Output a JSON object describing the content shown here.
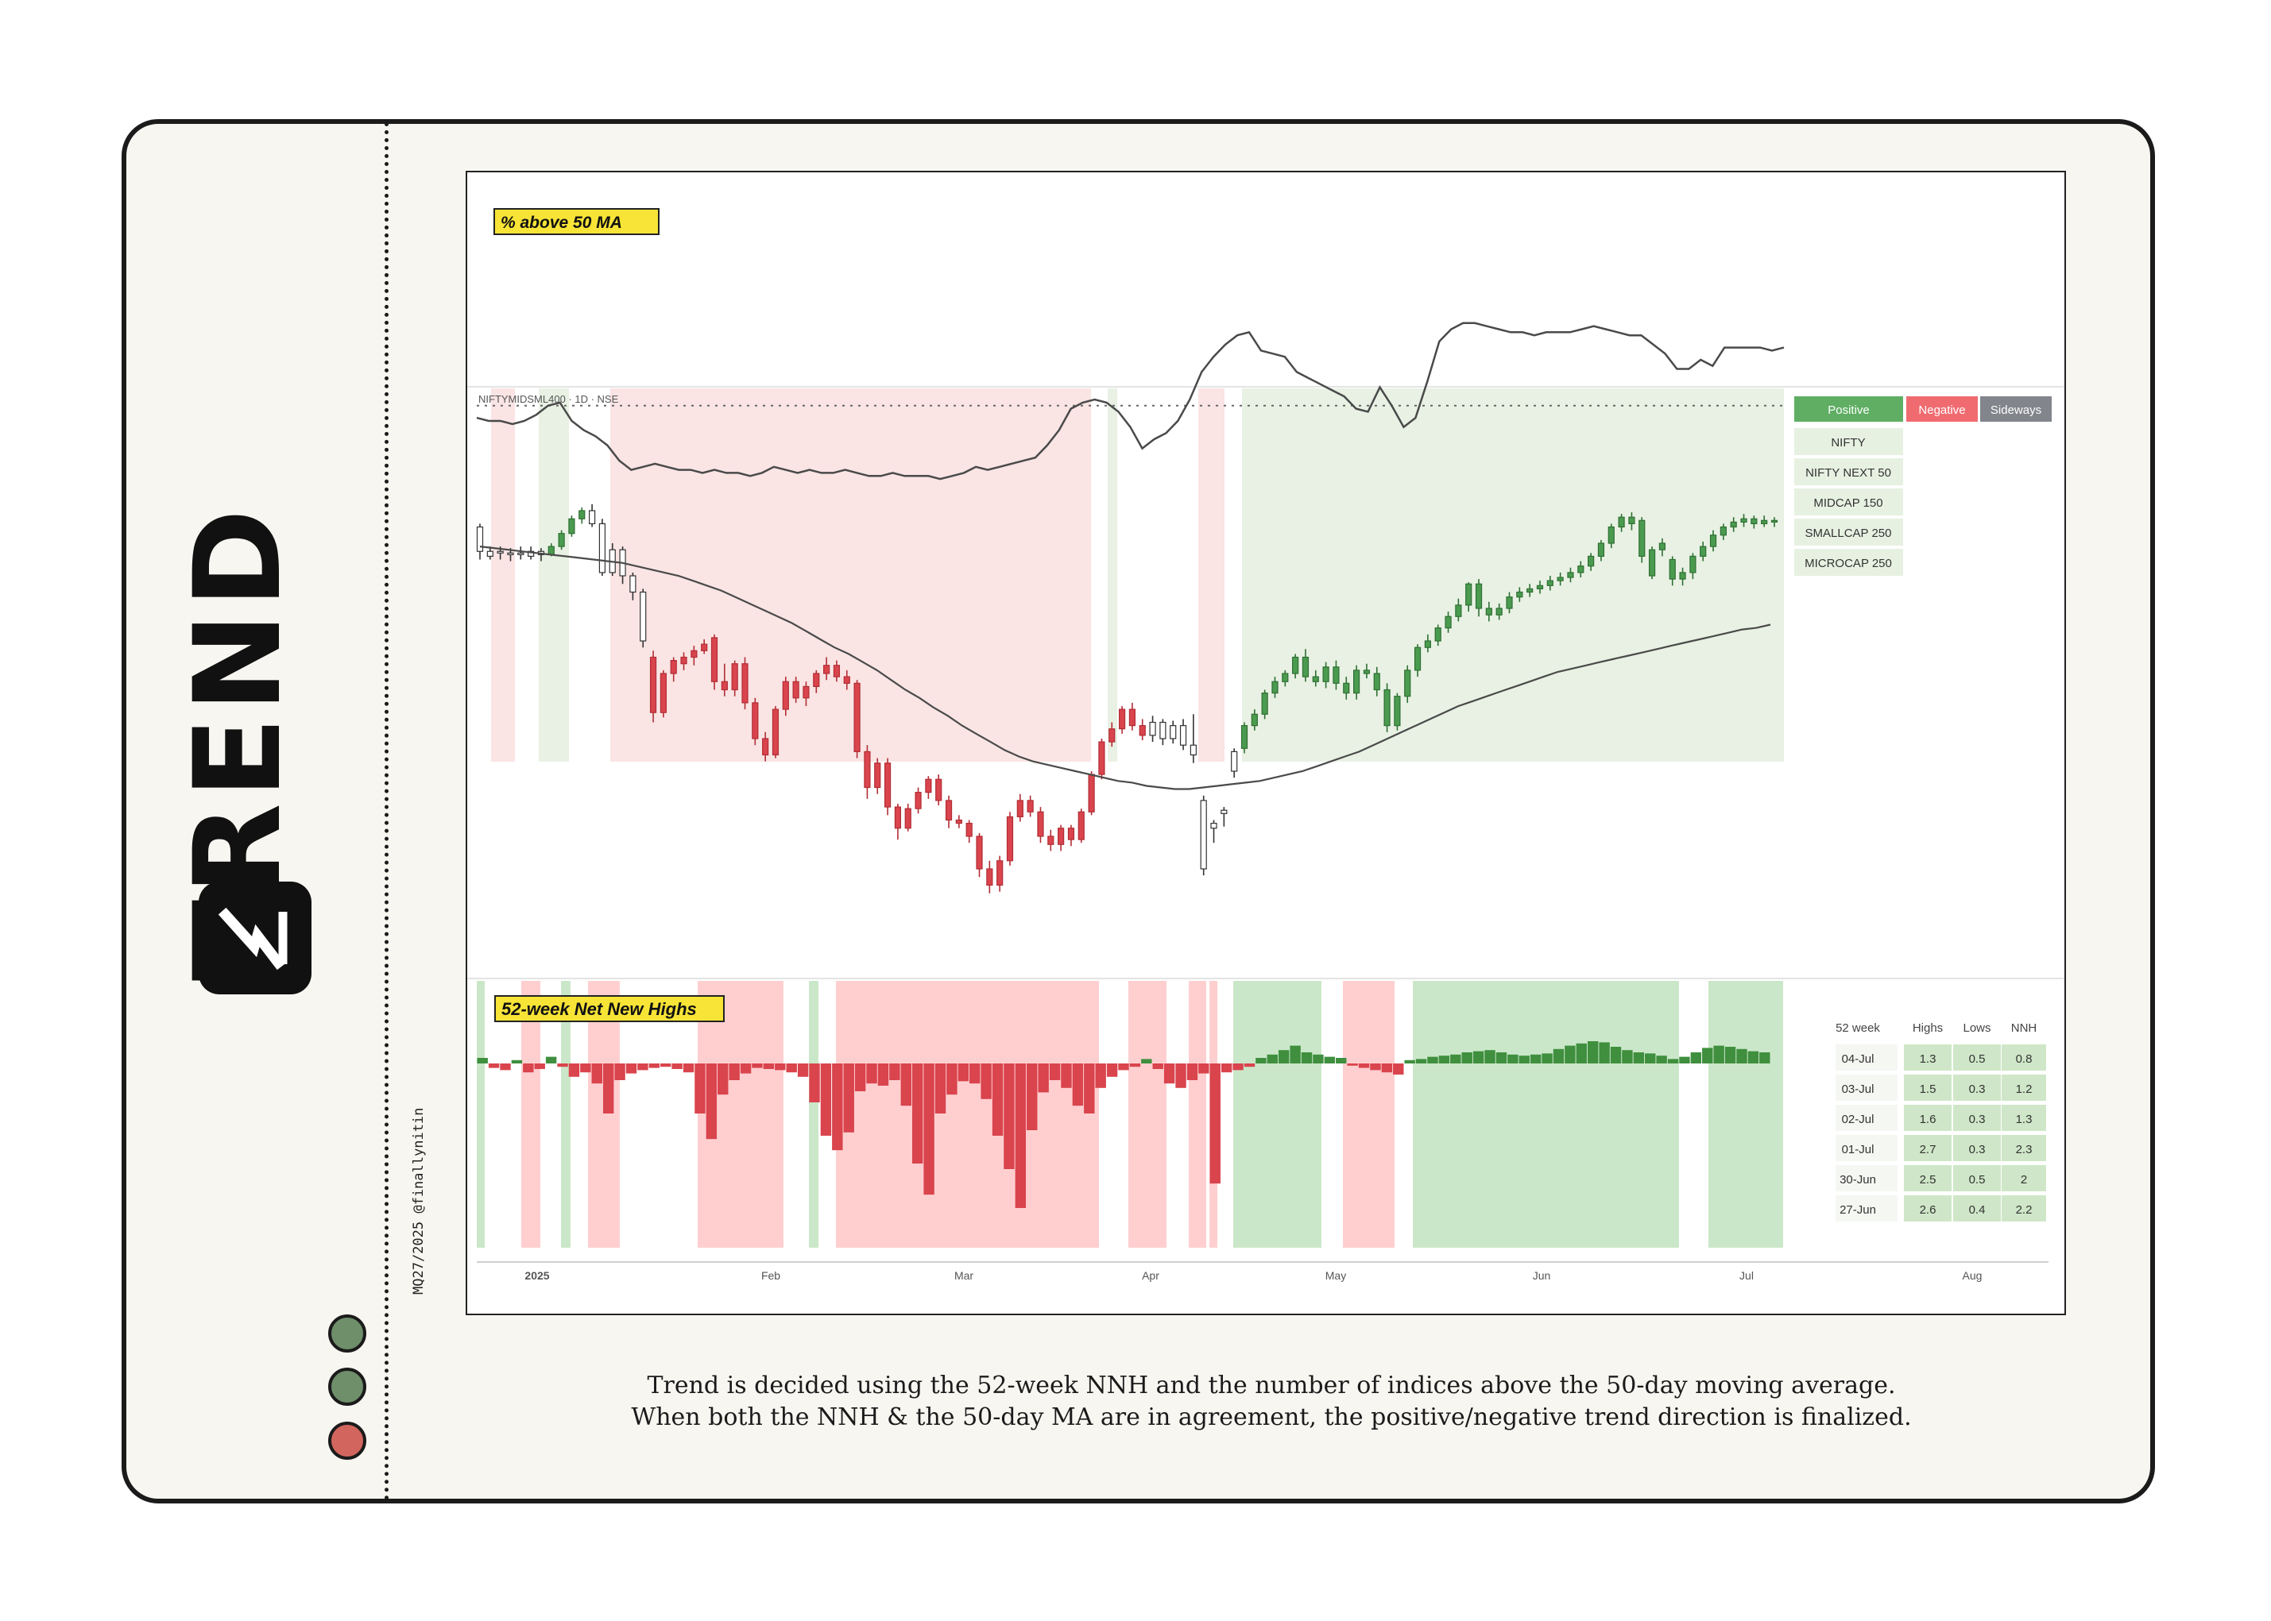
{
  "title": "TREND",
  "handle": "MQ27/2025 @finallynitin",
  "caption": {
    "line1": "Trend is decided using the 52-week NNH and the number of indices above the 50-day moving average.",
    "line2": "When both the NNH & the 50-day MA are in agreement, the positive/negative trend direction is finalized."
  },
  "status_dots": [
    {
      "color": "#6e8f6a"
    },
    {
      "color": "#6e8f6a"
    },
    {
      "color": "#d2665e"
    }
  ],
  "chart_data": {
    "type": "line",
    "symbol_label": "NIFTYMIDSML400 · 1D · NSE",
    "panels": {
      "top": {
        "label": "% above 50 MA"
      },
      "bottom": {
        "label": "52-week Net New Highs"
      }
    },
    "x_tick_labels": [
      "2025",
      "Feb",
      "Mar",
      "Apr",
      "May",
      "Jun",
      "Jul",
      "Aug"
    ],
    "colors": {
      "positive": "#4a9b4f",
      "negative": "#d9444d",
      "sideways": "#7d7f87",
      "positive_bg": "#e8f1e3",
      "negative_bg": "#fae4e4",
      "nnh_pos_bg": "#cbe7c9",
      "nnh_neg_bg": "#ffcfd0",
      "label_yellow": "#f7e437"
    },
    "pct_above_50ma": [
      51,
      50,
      50,
      49,
      50,
      52,
      55,
      56,
      50,
      47,
      45,
      42,
      37,
      34,
      35,
      36,
      35,
      34,
      34,
      33,
      34,
      33,
      33,
      32,
      33,
      35,
      34,
      33,
      34,
      33,
      33,
      34,
      33,
      32,
      32,
      33,
      32,
      32,
      32,
      31,
      32,
      33,
      35,
      34,
      35,
      36,
      37,
      38,
      42,
      47,
      54,
      56,
      57,
      56,
      53,
      48,
      41,
      44,
      46,
      50,
      57,
      66,
      71,
      75,
      78,
      79,
      73,
      72,
      71,
      66,
      64,
      62,
      60,
      58,
      54,
      53,
      61,
      55,
      48,
      51,
      63,
      76,
      80,
      82,
      82,
      81,
      80,
      79,
      79,
      78,
      79,
      79,
      79,
      80,
      81,
      80,
      79,
      78,
      78,
      75,
      72,
      67,
      67,
      70,
      68,
      74,
      74,
      74,
      74,
      73,
      74
    ],
    "sma_level": 55,
    "candles": [
      [
        1070,
        1055,
        1072,
        1050
      ],
      [
        1052,
        1055,
        1058,
        1050
      ],
      [
        1055,
        1054,
        1058,
        1050
      ],
      [
        1053,
        1054,
        1057,
        1049
      ],
      [
        1054,
        1053,
        1058,
        1050
      ],
      [
        1052,
        1055,
        1058,
        1050
      ],
      [
        1055,
        1053,
        1057,
        1049
      ],
      [
        1053,
        1058,
        1060,
        1052
      ],
      [
        1058,
        1066,
        1068,
        1056
      ],
      [
        1066,
        1075,
        1077,
        1064
      ],
      [
        1075,
        1080,
        1082,
        1072
      ],
      [
        1080,
        1072,
        1084,
        1070
      ],
      [
        1072,
        1042,
        1075,
        1040
      ],
      [
        1042,
        1056,
        1060,
        1040
      ],
      [
        1056,
        1040,
        1058,
        1035
      ],
      [
        1040,
        1030,
        1042,
        1025
      ],
      [
        1030,
        1000,
        1032,
        996
      ],
      [
        990,
        956,
        994,
        950
      ],
      [
        956,
        980,
        982,
        953
      ],
      [
        980,
        988,
        990,
        975
      ],
      [
        986,
        990,
        993,
        982
      ],
      [
        990,
        994,
        997,
        985
      ],
      [
        994,
        998,
        1001,
        992
      ],
      [
        1002,
        975,
        1004,
        970
      ],
      [
        975,
        970,
        986,
        966
      ],
      [
        970,
        986,
        988,
        966
      ],
      [
        986,
        962,
        990,
        958
      ],
      [
        962,
        940,
        965,
        936
      ],
      [
        940,
        930,
        944,
        926
      ],
      [
        930,
        958,
        960,
        928
      ],
      [
        958,
        975,
        978,
        954
      ],
      [
        975,
        965,
        978,
        962
      ],
      [
        965,
        972,
        975,
        960
      ],
      [
        972,
        980,
        982,
        968
      ],
      [
        980,
        985,
        990,
        976
      ],
      [
        985,
        978,
        988,
        975
      ],
      [
        978,
        974,
        982,
        970
      ],
      [
        974,
        932,
        976,
        928
      ],
      [
        932,
        910,
        936,
        903
      ],
      [
        910,
        925,
        928,
        906
      ],
      [
        925,
        898,
        928,
        893
      ],
      [
        898,
        885,
        900,
        878
      ],
      [
        885,
        897,
        900,
        883
      ],
      [
        897,
        907,
        910,
        894
      ],
      [
        907,
        915,
        917,
        903
      ],
      [
        915,
        902,
        918,
        899
      ],
      [
        902,
        890,
        905,
        885
      ],
      [
        890,
        888,
        893,
        885
      ],
      [
        888,
        880,
        890,
        876
      ],
      [
        880,
        860,
        882,
        855
      ],
      [
        860,
        850,
        865,
        845
      ],
      [
        850,
        865,
        868,
        846
      ],
      [
        865,
        892,
        895,
        862
      ],
      [
        892,
        902,
        906,
        889
      ],
      [
        902,
        895,
        905,
        892
      ],
      [
        895,
        880,
        898,
        876
      ],
      [
        880,
        875,
        884,
        871
      ],
      [
        875,
        885,
        887,
        871
      ],
      [
        885,
        878,
        887,
        874
      ],
      [
        878,
        895,
        897,
        876
      ],
      [
        895,
        918,
        920,
        893
      ],
      [
        918,
        938,
        940,
        915
      ],
      [
        938,
        946,
        950,
        935
      ],
      [
        946,
        958,
        960,
        943
      ],
      [
        958,
        948,
        962,
        945
      ],
      [
        948,
        942,
        952,
        939
      ],
      [
        942,
        950,
        954,
        938
      ],
      [
        950,
        940,
        952,
        936
      ],
      [
        940,
        948,
        951,
        937
      ],
      [
        948,
        936,
        952,
        933
      ],
      [
        936,
        930,
        955,
        925
      ],
      [
        902,
        860,
        905,
        856
      ],
      [
        885,
        888,
        890,
        876
      ],
      [
        894,
        896,
        898,
        886
      ],
      [
        920,
        932,
        934,
        916
      ],
      [
        934,
        948,
        950,
        931
      ],
      [
        948,
        955,
        958,
        945
      ],
      [
        955,
        968,
        970,
        952
      ],
      [
        968,
        975,
        978,
        965
      ],
      [
        975,
        980,
        982,
        972
      ],
      [
        980,
        990,
        992,
        977
      ],
      [
        990,
        978,
        995,
        975
      ],
      [
        978,
        975,
        982,
        972
      ],
      [
        975,
        984,
        987,
        971
      ],
      [
        984,
        974,
        988,
        970
      ],
      [
        974,
        968,
        978,
        964
      ],
      [
        968,
        982,
        985,
        964
      ],
      [
        982,
        980,
        986,
        977
      ],
      [
        980,
        970,
        984,
        966
      ],
      [
        970,
        948,
        974,
        944
      ],
      [
        948,
        966,
        968,
        945
      ],
      [
        966,
        982,
        985,
        962
      ],
      [
        982,
        996,
        998,
        978
      ],
      [
        996,
        1000,
        1004,
        993
      ],
      [
        1000,
        1008,
        1010,
        997
      ],
      [
        1008,
        1015,
        1018,
        1005
      ],
      [
        1015,
        1022,
        1026,
        1012
      ],
      [
        1022,
        1035,
        1036,
        1018
      ],
      [
        1035,
        1020,
        1038,
        1015
      ],
      [
        1020,
        1016,
        1024,
        1012
      ],
      [
        1016,
        1020,
        1023,
        1013
      ],
      [
        1020,
        1027,
        1030,
        1017
      ],
      [
        1027,
        1030,
        1033,
        1024
      ],
      [
        1030,
        1032,
        1035,
        1027
      ],
      [
        1032,
        1034,
        1037,
        1029
      ],
      [
        1034,
        1037,
        1040,
        1031
      ],
      [
        1037,
        1039,
        1042,
        1034
      ],
      [
        1039,
        1042,
        1045,
        1036
      ],
      [
        1042,
        1046,
        1049,
        1039
      ],
      [
        1046,
        1052,
        1054,
        1043
      ],
      [
        1052,
        1060,
        1062,
        1049
      ],
      [
        1060,
        1070,
        1072,
        1057
      ],
      [
        1070,
        1076,
        1078,
        1067
      ],
      [
        1076,
        1072,
        1079,
        1068
      ],
      [
        1074,
        1052,
        1076,
        1048
      ],
      [
        1040,
        1056,
        1058,
        1038
      ],
      [
        1056,
        1060,
        1063,
        1052
      ],
      [
        1050,
        1038,
        1052,
        1034
      ],
      [
        1038,
        1042,
        1045,
        1034
      ],
      [
        1042,
        1052,
        1054,
        1038
      ],
      [
        1052,
        1058,
        1061,
        1049
      ],
      [
        1058,
        1065,
        1068,
        1055
      ],
      [
        1065,
        1070,
        1072,
        1062
      ],
      [
        1070,
        1073,
        1076,
        1067
      ],
      [
        1073,
        1075,
        1078,
        1070
      ],
      [
        1075,
        1072,
        1077,
        1069
      ],
      [
        1072,
        1074,
        1077,
        1070
      ],
      [
        1074,
        1073,
        1076,
        1070
      ]
    ],
    "ma50": [
      1058,
      1057,
      1056,
      1055,
      1054,
      1053,
      1052,
      1051,
      1050,
      1049,
      1048,
      1046,
      1044,
      1042,
      1040,
      1037,
      1034,
      1031,
      1027,
      1023,
      1019,
      1015,
      1011,
      1006,
      1001,
      996,
      992,
      987,
      982,
      976,
      970,
      965,
      959,
      954,
      948,
      943,
      938,
      933,
      929,
      926,
      924,
      922,
      920,
      918,
      916,
      914,
      913,
      911,
      910,
      909,
      909,
      910,
      911,
      912,
      913,
      914,
      916,
      918,
      920,
      923,
      926,
      929,
      932,
      936,
      940,
      944,
      948,
      952,
      956,
      960,
      963,
      966,
      969,
      972,
      975,
      978,
      981,
      983,
      985,
      987,
      989,
      991,
      993,
      995,
      997,
      999,
      1001,
      1003,
      1005,
      1007,
      1008,
      1010
    ],
    "nnh_values": [
      0.5,
      -0.4,
      -0.6,
      0.3,
      -0.8,
      -0.5,
      0.6,
      -0.3,
      -1.2,
      -0.8,
      -1.8,
      -4.5,
      -1.5,
      -0.9,
      -0.6,
      -0.4,
      -0.3,
      -0.5,
      -0.8,
      -4.5,
      -6.8,
      -2.8,
      -1.5,
      -0.9,
      -0.4,
      -0.5,
      -0.6,
      -0.8,
      -1.2,
      -3.5,
      -6.5,
      -7.8,
      -6.2,
      -2.5,
      -1.8,
      -2.0,
      -1.5,
      -3.8,
      -9.0,
      -11.8,
      -4.5,
      -2.8,
      -1.6,
      -1.8,
      -3.2,
      -6.5,
      -9.5,
      -13.0,
      -6.0,
      -2.6,
      -1.5,
      -2.2,
      -3.8,
      -4.5,
      -2.2,
      -1.2,
      -0.6,
      -0.3,
      0.4,
      -0.5,
      -1.8,
      -2.2,
      -1.5,
      -0.9,
      -10.8,
      -0.8,
      -0.6,
      -0.3,
      0.5,
      0.8,
      1.2,
      1.6,
      1.0,
      0.8,
      0.6,
      0.5,
      -0.2,
      -0.4,
      -0.6,
      -0.8,
      -1.0,
      0.3,
      0.4,
      0.6,
      0.7,
      0.8,
      1.0,
      1.1,
      1.2,
      1.0,
      0.8,
      0.7,
      0.8,
      0.9,
      1.3,
      1.6,
      1.8,
      2.0,
      1.9,
      1.5,
      1.2,
      1.0,
      0.9,
      0.7,
      0.4,
      0.6,
      1.0,
      1.4,
      1.6,
      1.5,
      1.3,
      1.1,
      1.0
    ],
    "index_table": {
      "headers": [
        "Positive",
        "Negative",
        "Sideways"
      ],
      "rows": [
        "NIFTY",
        "NIFTY NEXT 50",
        "MIDCAP 150",
        "SMALLCAP 250",
        "MICROCAP 250"
      ]
    },
    "nnh_table": {
      "headers": [
        "52 week",
        "Highs",
        "Lows",
        "NNH"
      ],
      "rows": [
        [
          "04-Jul",
          "1.3",
          "0.5",
          "0.8"
        ],
        [
          "03-Jul",
          "1.5",
          "0.3",
          "1.2"
        ],
        [
          "02-Jul",
          "1.6",
          "0.3",
          "1.3"
        ],
        [
          "01-Jul",
          "2.7",
          "0.3",
          "2.3"
        ],
        [
          "30-Jun",
          "2.5",
          "0.5",
          "2"
        ],
        [
          "27-Jun",
          "2.6",
          "0.4",
          "2.2"
        ]
      ]
    }
  }
}
